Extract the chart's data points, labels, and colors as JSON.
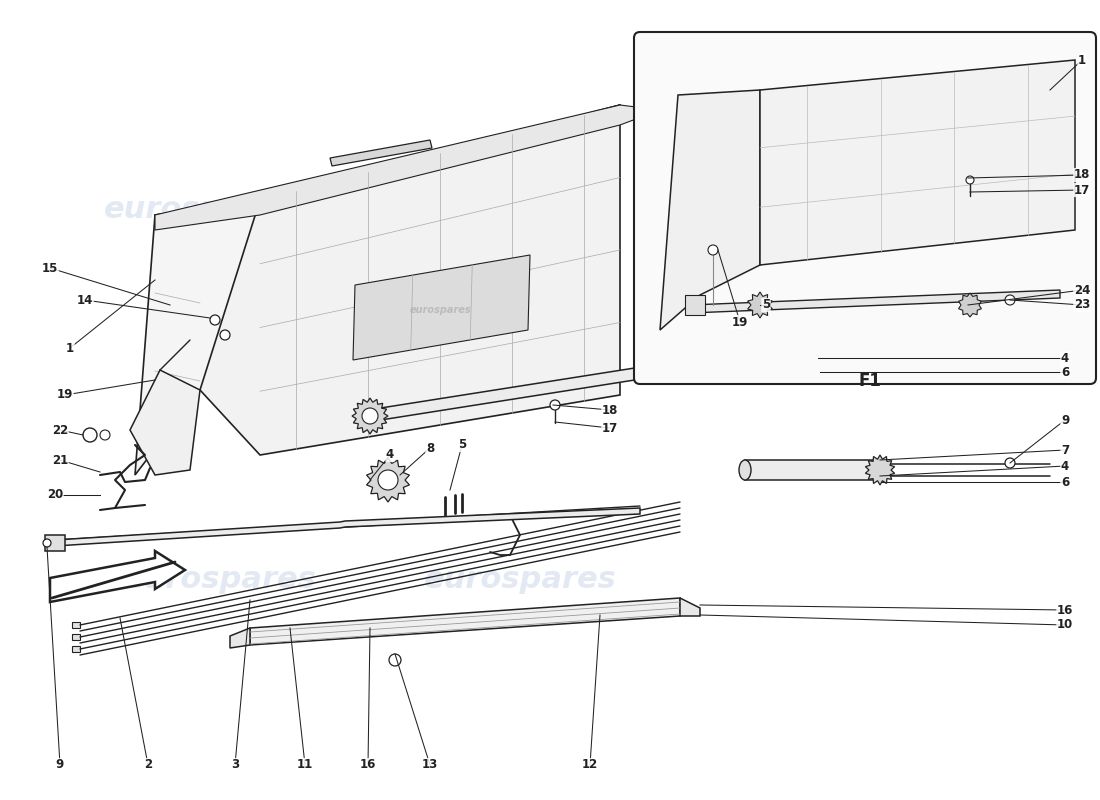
{
  "background_color": "#ffffff",
  "line_color": "#222222",
  "wm_color": "#c8d4e8",
  "watermark_text": "eurospares",
  "fig_w": 11.0,
  "fig_h": 8.0,
  "dpi": 100
}
